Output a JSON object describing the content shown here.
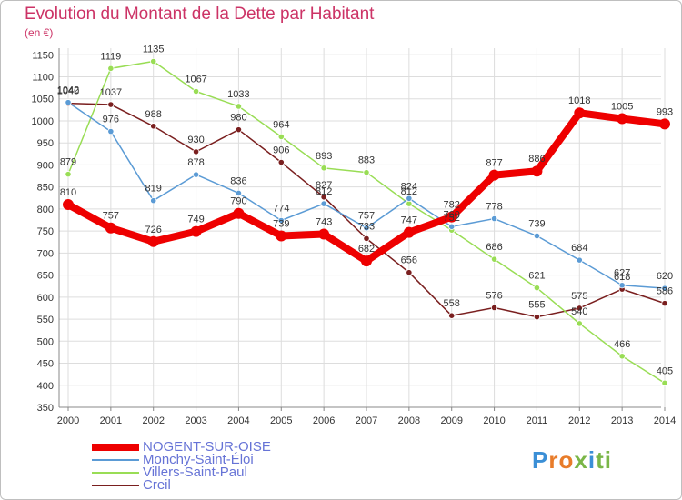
{
  "title": "Evolution du Montant de la Dette par Habitant",
  "subtitle": "(en €)",
  "logo": {
    "letters": [
      "P",
      "r",
      "o",
      "x",
      "i",
      "t",
      "i"
    ],
    "colors": [
      "#3b8fd6",
      "#e87c2a",
      "#e87c2a",
      "#7ab648",
      "#3b8fd6",
      "#7ab648",
      "#7ab648"
    ]
  },
  "chart_data": {
    "type": "line",
    "x": [
      "2000",
      "2001",
      "2002",
      "2003",
      "2004",
      "2005",
      "2006",
      "2007",
      "2008",
      "2009",
      "2010",
      "2011",
      "2012",
      "2013",
      "2014"
    ],
    "yticks": [
      350,
      400,
      450,
      500,
      550,
      600,
      650,
      700,
      750,
      800,
      850,
      900,
      950,
      1000,
      1050,
      1100,
      1150
    ],
    "ylim": [
      350,
      1165
    ],
    "grid": true,
    "legend_position": "bottom-left",
    "series": [
      {
        "name": "Creil",
        "color": "#7a1f1f",
        "values": [
          1040,
          1037,
          988,
          930,
          980,
          906,
          827,
          733,
          656,
          558,
          576,
          555,
          575,
          618,
          586
        ],
        "labels": [
          "1040",
          "1037",
          "988",
          "930",
          "980",
          "906",
          "827",
          "733",
          "656",
          "558",
          "576",
          "555",
          "575",
          "618",
          "586"
        ]
      },
      {
        "name": "Villers-Saint-Paul",
        "color": "#99dd55",
        "values": [
          879,
          1119,
          1135,
          1067,
          1033,
          964,
          893,
          883,
          812,
          752,
          686,
          621,
          540,
          466,
          405
        ],
        "labels": [
          "879",
          "1119",
          "1135",
          "1067",
          "1033",
          "964",
          "893",
          "883",
          "812",
          "752",
          "686",
          "621",
          "540",
          "466",
          "405"
        ]
      },
      {
        "name": "Monchy-Saint-Éloi",
        "color": "#5b9bd5",
        "values": [
          1042,
          976,
          819,
          878,
          836,
          774,
          812,
          757,
          824,
          760,
          778,
          739,
          684,
          627,
          620
        ],
        "labels": [
          "1042",
          "976",
          "819",
          "878",
          "836",
          "774",
          "812",
          "757",
          "824",
          "760",
          "778",
          "739",
          "684",
          "627",
          "620"
        ]
      },
      {
        "name": "NOGENT-SUR-OISE",
        "color": "#ee0000",
        "values": [
          810,
          757,
          726,
          749,
          790,
          739,
          743,
          682,
          747,
          782,
          877,
          886,
          1018,
          1005,
          993
        ],
        "labels": [
          "810",
          "757",
          "726",
          "749",
          "790",
          "739",
          "743",
          "682",
          "747",
          "782",
          "877",
          "886",
          "1018",
          "1005",
          "993"
        ]
      }
    ],
    "legend_order": [
      "NOGENT-SUR-OISE",
      "Monchy-Saint-Éloi",
      "Villers-Saint-Paul",
      "Creil"
    ]
  }
}
